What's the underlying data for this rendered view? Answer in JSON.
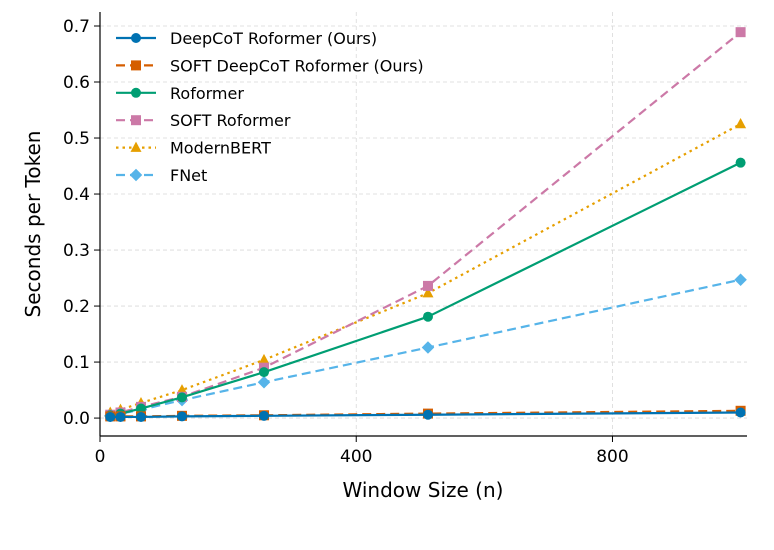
{
  "chart_data": {
    "type": "line",
    "title": "",
    "xlabel": "Window Size (n)",
    "ylabel": "Seconds per Token",
    "xlim": [
      0,
      1010
    ],
    "ylim": [
      -0.032,
      0.725
    ],
    "xticks": [
      0,
      400,
      800
    ],
    "xtick_labels": [
      "0",
      "400",
      "800"
    ],
    "yticks": [
      0.0,
      0.1,
      0.2,
      0.3,
      0.4,
      0.5,
      0.6,
      0.7
    ],
    "ytick_labels": [
      "0.0",
      "0.1",
      "0.2",
      "0.3",
      "0.4",
      "0.5",
      "0.6",
      "0.7"
    ],
    "grid": true,
    "legend_position": "top-left",
    "series": [
      {
        "name": "DeepCoT Roformer (Ours)",
        "color": "#0072B2",
        "linestyle": "solid",
        "marker": "circle",
        "x": [
          16,
          32,
          64,
          128,
          256,
          512,
          1000
        ],
        "y": [
          0.002,
          0.002,
          0.002,
          0.003,
          0.004,
          0.006,
          0.01
        ]
      },
      {
        "name": "SOFT DeepCoT Roformer (Ours)",
        "color": "#D55E00",
        "linestyle": "dashed",
        "marker": "square",
        "x": [
          16,
          32,
          64,
          128,
          256,
          512,
          1000
        ],
        "y": [
          0.003,
          0.003,
          0.003,
          0.004,
          0.005,
          0.008,
          0.013
        ]
      },
      {
        "name": "Roformer",
        "color": "#009E73",
        "linestyle": "solid",
        "marker": "circle",
        "x": [
          16,
          32,
          64,
          128,
          256,
          512,
          1000
        ],
        "y": [
          0.005,
          0.008,
          0.017,
          0.037,
          0.082,
          0.181,
          0.456
        ]
      },
      {
        "name": "SOFT Roformer",
        "color": "#CC79A7",
        "linestyle": "dashed",
        "marker": "square",
        "x": [
          16,
          32,
          64,
          128,
          256,
          512,
          1000
        ],
        "y": [
          0.006,
          0.01,
          0.02,
          0.038,
          0.09,
          0.236,
          0.689
        ]
      },
      {
        "name": "ModernBERT",
        "color": "#E69F00",
        "linestyle": "dotted",
        "marker": "triangle",
        "x": [
          16,
          32,
          64,
          128,
          256,
          512,
          1000
        ],
        "y": [
          0.01,
          0.015,
          0.027,
          0.05,
          0.104,
          0.223,
          0.525
        ]
      },
      {
        "name": "FNet",
        "color": "#56B4E9",
        "linestyle": "dashed",
        "marker": "diamond",
        "x": [
          16,
          32,
          64,
          128,
          256,
          512,
          1000
        ],
        "y": [
          0.004,
          0.008,
          0.015,
          0.032,
          0.064,
          0.126,
          0.247
        ]
      }
    ]
  }
}
